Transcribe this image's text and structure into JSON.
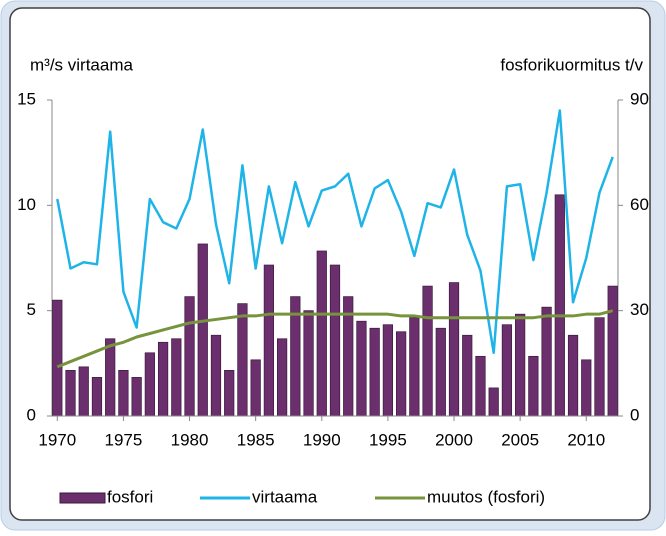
{
  "chart_data": {
    "type": "combo",
    "y_label": "m³/s virtaama",
    "y2_label": "fosforikuormitus t/v",
    "x": [
      1970,
      1971,
      1972,
      1973,
      1974,
      1975,
      1976,
      1977,
      1978,
      1979,
      1980,
      1981,
      1982,
      1983,
      1984,
      1985,
      1986,
      1987,
      1988,
      1989,
      1990,
      1991,
      1992,
      1993,
      1994,
      1995,
      1996,
      1997,
      1998,
      1999,
      2000,
      2001,
      2002,
      2003,
      2004,
      2005,
      2006,
      2007,
      2008,
      2009,
      2010,
      2011,
      2012
    ],
    "xlim": [
      1969.6,
      2012.4
    ],
    "xticks": [
      1970,
      1975,
      1980,
      1985,
      1990,
      1995,
      2000,
      2005,
      2010
    ],
    "ylim": [
      0,
      15
    ],
    "yticks": [
      0,
      5,
      10,
      15
    ],
    "y2lim": [
      0,
      90
    ],
    "y2ticks": [
      0,
      30,
      60,
      90
    ],
    "series": [
      {
        "name": "fosfori",
        "type": "bar",
        "axis": "y2",
        "color": "#6b2f6e",
        "values": [
          33,
          13,
          14,
          11,
          22,
          13,
          11,
          18,
          21,
          22,
          34,
          49,
          23,
          13,
          32,
          16,
          43,
          22,
          34,
          30,
          47,
          43,
          34,
          27,
          25,
          26,
          24,
          28,
          37,
          25,
          38,
          23,
          17,
          8,
          26,
          29,
          17,
          31,
          63,
          23,
          16,
          28,
          37
        ]
      },
      {
        "name": "virtaama",
        "type": "line",
        "color": "#1fb4e8",
        "values": [
          10.3,
          7.0,
          7.3,
          7.2,
          13.5,
          5.9,
          4.2,
          10.3,
          9.2,
          8.9,
          10.3,
          13.6,
          9.1,
          6.3,
          11.9,
          7.0,
          10.9,
          8.2,
          11.1,
          9.0,
          10.7,
          10.9,
          11.5,
          9.0,
          10.8,
          11.2,
          9.7,
          7.6,
          10.1,
          9.9,
          11.7,
          8.6,
          6.9,
          3.0,
          10.9,
          11.0,
          7.4,
          10.6,
          14.5,
          5.4,
          7.5,
          10.6,
          12.3
        ]
      },
      {
        "name": "muutos (fosfori)",
        "type": "line",
        "axis": "y2",
        "color": "#77933c",
        "values": [
          14,
          15.5,
          17,
          18.5,
          20,
          21,
          22.5,
          23.5,
          24.5,
          25.5,
          26.5,
          27,
          27.5,
          28,
          28.5,
          28.5,
          29,
          29,
          29,
          29,
          29,
          29,
          29,
          29,
          29,
          29,
          28.5,
          28.5,
          28,
          28,
          28,
          28,
          28,
          28,
          28,
          28,
          28,
          28.5,
          28.5,
          28.5,
          29,
          29,
          30
        ]
      }
    ]
  }
}
